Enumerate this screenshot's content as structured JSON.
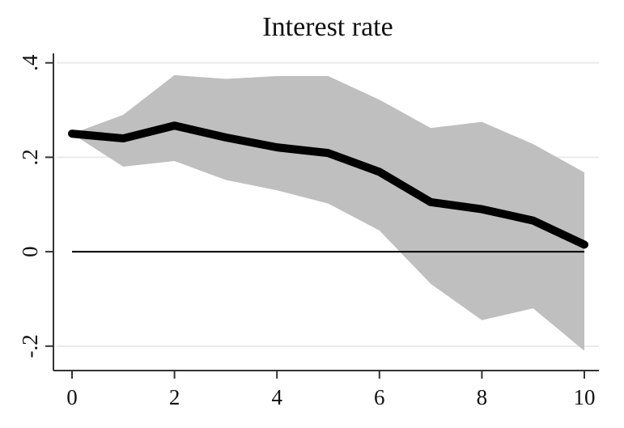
{
  "chart_data": {
    "type": "line",
    "title": "Interest rate",
    "xlabel": "",
    "ylabel": "",
    "x": [
      0,
      1,
      2,
      3,
      4,
      5,
      6,
      7,
      8,
      9,
      10
    ],
    "series": [
      {
        "values": [
          0.25,
          0.24,
          0.267,
          0.242,
          0.221,
          0.209,
          0.169,
          0.105,
          0.09,
          0.066,
          0.015
        ]
      }
    ],
    "band": {
      "lower": [
        0.25,
        0.18,
        0.192,
        0.152,
        0.13,
        0.102,
        0.045,
        -0.068,
        -0.145,
        -0.12,
        -0.21
      ],
      "upper": [
        0.25,
        0.29,
        0.374,
        0.366,
        0.372,
        0.372,
        0.322,
        0.262,
        0.275,
        0.228,
        0.168
      ]
    },
    "reference_line": 0,
    "xlim": [
      0,
      10
    ],
    "ylim": [
      -0.25,
      0.42
    ],
    "x_ticks": [
      0,
      2,
      4,
      6,
      8,
      10
    ],
    "x_tick_labels": [
      "0",
      "2",
      "4",
      "6",
      "8",
      "10"
    ],
    "y_ticks": [
      -0.2,
      0,
      0.2,
      0.4
    ],
    "y_tick_labels": [
      "-.2",
      "0",
      ".2",
      ".4"
    ],
    "grid": true,
    "legend": "none",
    "colors": {
      "line": "#000000",
      "band": "#bfbfbf",
      "grid": "#eaeaea",
      "reference": "#000000",
      "axis": "#333333"
    }
  }
}
